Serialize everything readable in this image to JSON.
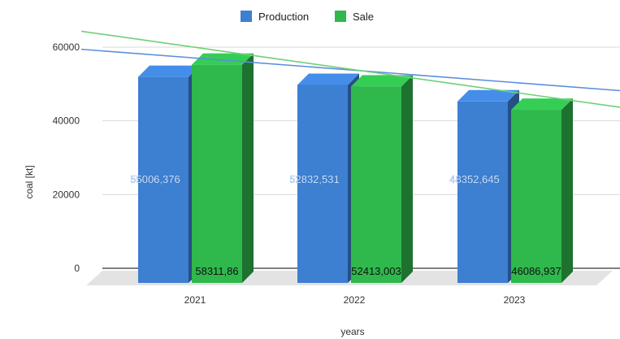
{
  "chart_data": {
    "type": "bar",
    "title": "",
    "xlabel": "years",
    "ylabel": "coal [kt]",
    "categories": [
      "2021",
      "2022",
      "2023"
    ],
    "series": [
      {
        "name": "Production",
        "values": [
          55006376,
          52832531,
          48352645
        ],
        "color": "#3d7fd1"
      },
      {
        "name": "Sale",
        "values": [
          58311860,
          52413003,
          46086937
        ],
        "color": "#2fb84c"
      }
    ],
    "data_labels": {
      "Production": [
        "55006,376",
        "52832,531",
        "48352,645"
      ],
      "Sale": [
        "58311,86",
        "52413,003",
        "46086,937"
      ]
    },
    "yticks": [
      "0",
      "20000",
      "40000",
      "60000"
    ],
    "ylim": [
      0,
      60000
    ],
    "trendlines": [
      {
        "series": "Production",
        "type": "linear",
        "color": "#5b8de0"
      },
      {
        "series": "Sale",
        "type": "linear",
        "color": "#6fcf7a"
      }
    ],
    "legend_position": "top",
    "grid": true,
    "style": "3d"
  }
}
